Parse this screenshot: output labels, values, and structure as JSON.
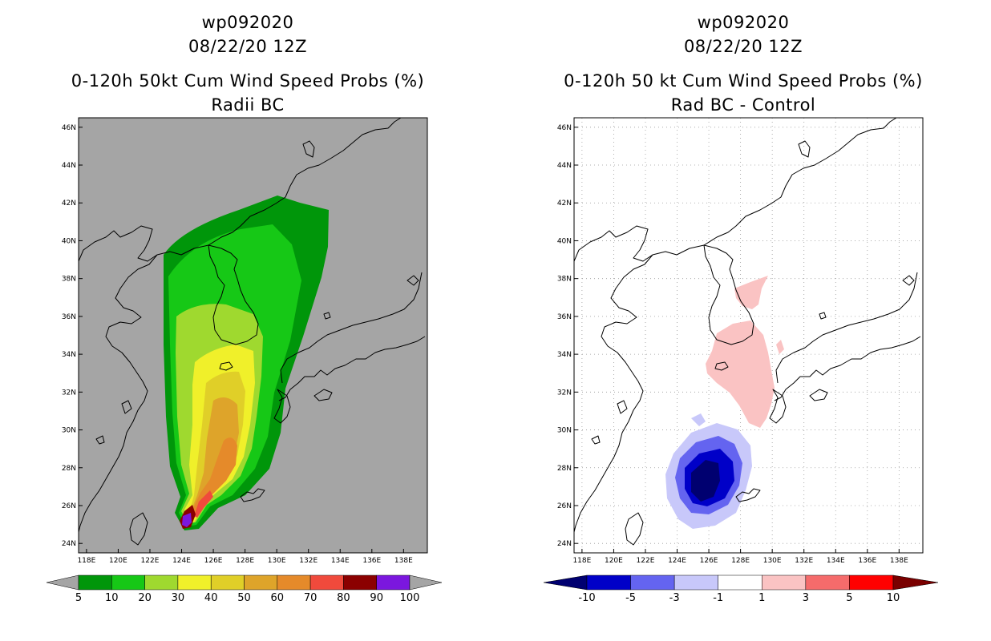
{
  "left": {
    "storm_id": "wp092020",
    "datetime": "08/22/20 12Z",
    "product": "0-120h 50kt Cum Wind Speed Probs (%)",
    "subtitle": "Radii BC",
    "background": "#a5a5a5",
    "lat_labels": [
      "46N",
      "44N",
      "42N",
      "40N",
      "38N",
      "36N",
      "34N",
      "32N",
      "30N",
      "28N",
      "26N",
      "24N"
    ],
    "lon_labels": [
      "118E",
      "120E",
      "122E",
      "124E",
      "126E",
      "128E",
      "130E",
      "132E",
      "134E",
      "136E",
      "138E"
    ],
    "colorbar": {
      "labels": [
        "5",
        "10",
        "20",
        "30",
        "40",
        "50",
        "60",
        "70",
        "80",
        "90",
        "100"
      ],
      "colors": [
        "#00960a",
        "#16c816",
        "#9fd92f",
        "#f0f02a",
        "#e0cf28",
        "#dea42a",
        "#e58a2a",
        "#f04a3c",
        "#8b0000",
        "#7b17de"
      ],
      "end_color": "#a5a5a5"
    }
  },
  "right": {
    "storm_id": "wp092020",
    "datetime": "08/22/20 12Z",
    "product": "0-120h 50 kt Cum Wind Speed Probs (%)",
    "subtitle": "Rad BC - Control",
    "background": "#ffffff",
    "lat_labels": [
      "46N",
      "44N",
      "42N",
      "40N",
      "38N",
      "36N",
      "34N",
      "32N",
      "30N",
      "28N",
      "26N",
      "24N"
    ],
    "lon_labels": [
      "118E",
      "120E",
      "122E",
      "124E",
      "126E",
      "128E",
      "130E",
      "132E",
      "134E",
      "136E",
      "138E"
    ],
    "colorbar": {
      "labels": [
        "-10",
        "-5",
        "-3",
        "-1",
        "1",
        "3",
        "5",
        "10"
      ],
      "colors": [
        "#0000c8",
        "#6464f0",
        "#c8c8fa",
        "#ffffff",
        "#fac3c3",
        "#f56b6b",
        "#ff0000"
      ],
      "end_low": "#000070",
      "end_high": "#7a0000"
    }
  }
}
